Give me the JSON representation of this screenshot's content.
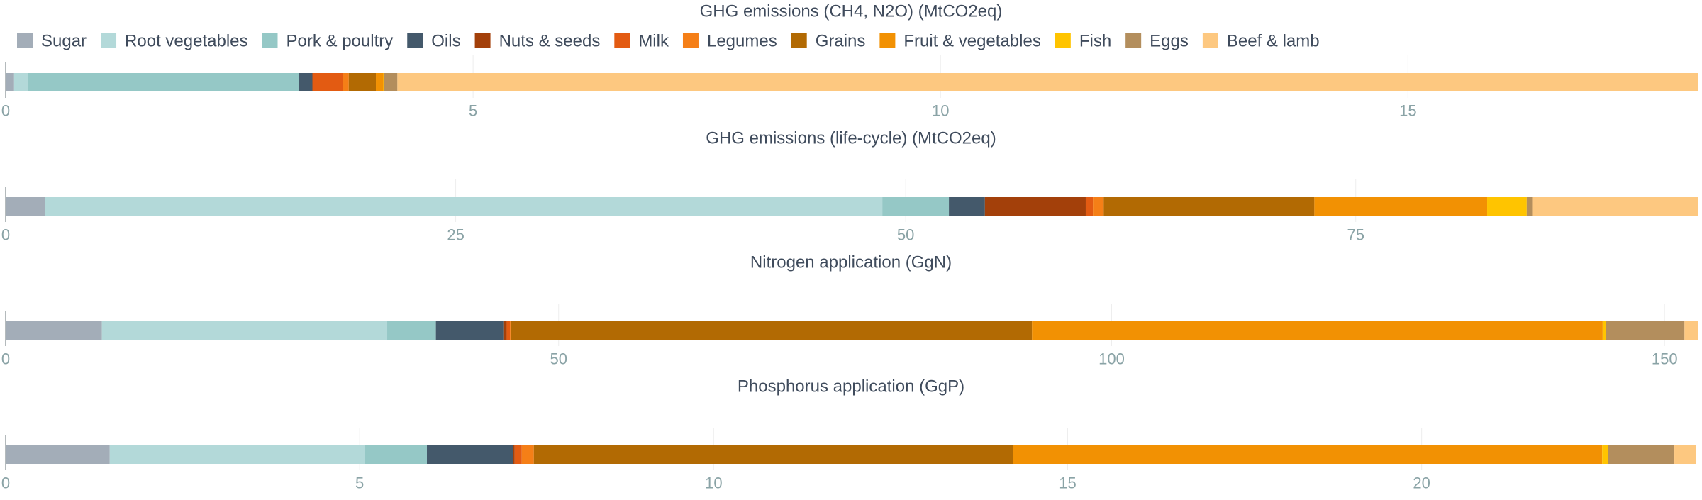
{
  "chart_data": {
    "type": "bar",
    "orientation": "horizontal",
    "stacked": true,
    "legend": {
      "placement": "top",
      "entries": [
        {
          "name": "Sugar",
          "color": "#a3adb8"
        },
        {
          "name": "Root vegetables",
          "color": "#b3d9d9"
        },
        {
          "name": "Pork & poultry",
          "color": "#95c8c6"
        },
        {
          "name": "Oils",
          "color": "#44596b"
        },
        {
          "name": "Nuts & seeds",
          "color": "#a3400a"
        },
        {
          "name": "Milk",
          "color": "#e35b12"
        },
        {
          "name": "Legumes",
          "color": "#f57f17"
        },
        {
          "name": "Grains",
          "color": "#b26a03"
        },
        {
          "name": "Fruit & vegetables",
          "color": "#f29103"
        },
        {
          "name": "Fish",
          "color": "#ffc400"
        },
        {
          "name": "Eggs",
          "color": "#b38e5d"
        },
        {
          "name": "Beef & lamb",
          "color": "#fdc880"
        }
      ]
    },
    "panels": [
      {
        "title": "GHG emissions (CH4, N2O) (MtCO2eq)",
        "xlim": [
          0,
          18.1
        ],
        "ticks": [
          0,
          5,
          10,
          15
        ],
        "grid": true,
        "values": {
          "Sugar": 0.09,
          "Root vegetables": 0.15,
          "Pork & poultry": 2.9,
          "Oils": 0.14,
          "Nuts & seeds": 0.01,
          "Milk": 0.32,
          "Legumes": 0.06,
          "Grains": 0.29,
          "Fruit & vegetables": 0.08,
          "Fish": 0.01,
          "Eggs": 0.14,
          "Beef & lamb": 13.91
        }
      },
      {
        "title": "GHG emissions (life-cycle) (MtCO2eq)",
        "xlim": [
          0,
          94
        ],
        "ticks": [
          0,
          25,
          50,
          75
        ],
        "grid": true,
        "values": {
          "Sugar": 2.2,
          "Root vegetables": 46.5,
          "Pork & poultry": 3.7,
          "Oils": 2.0,
          "Nuts & seeds": 5.6,
          "Milk": 0.4,
          "Legumes": 0.6,
          "Grains": 11.7,
          "Fruit & vegetables": 9.6,
          "Fish": 2.2,
          "Eggs": 0.3,
          "Beef & lamb": 9.2
        }
      },
      {
        "title": "Nitrogen application (GgN)",
        "xlim": [
          0,
          153
        ],
        "ticks": [
          0,
          50,
          100,
          150
        ],
        "grid": true,
        "values": {
          "Sugar": 8.7,
          "Root vegetables": 25.8,
          "Pork & poultry": 4.4,
          "Oils": 6.1,
          "Nuts & seeds": 0.3,
          "Milk": 0.3,
          "Legumes": 0.1,
          "Grains": 47.1,
          "Fruit & vegetables": 51.6,
          "Fish": 0.3,
          "Eggs": 7.1,
          "Beef & lamb": 1.2
        }
      },
      {
        "title": "Phosphorus application (GgP)",
        "xlim": [
          0,
          23.9
        ],
        "ticks": [
          0,
          5,
          10,
          15,
          20
        ],
        "grid": true,
        "values": {
          "Sugar": 1.47,
          "Root vegetables": 3.6,
          "Pork & poultry": 0.88,
          "Oils": 1.22,
          "Nuts & seeds": 0.02,
          "Milk": 0.1,
          "Legumes": 0.17,
          "Grains": 6.77,
          "Fruit & vegetables": 8.32,
          "Fish": 0.08,
          "Eggs": 0.94,
          "Beef & lamb": 0.3
        }
      }
    ]
  }
}
